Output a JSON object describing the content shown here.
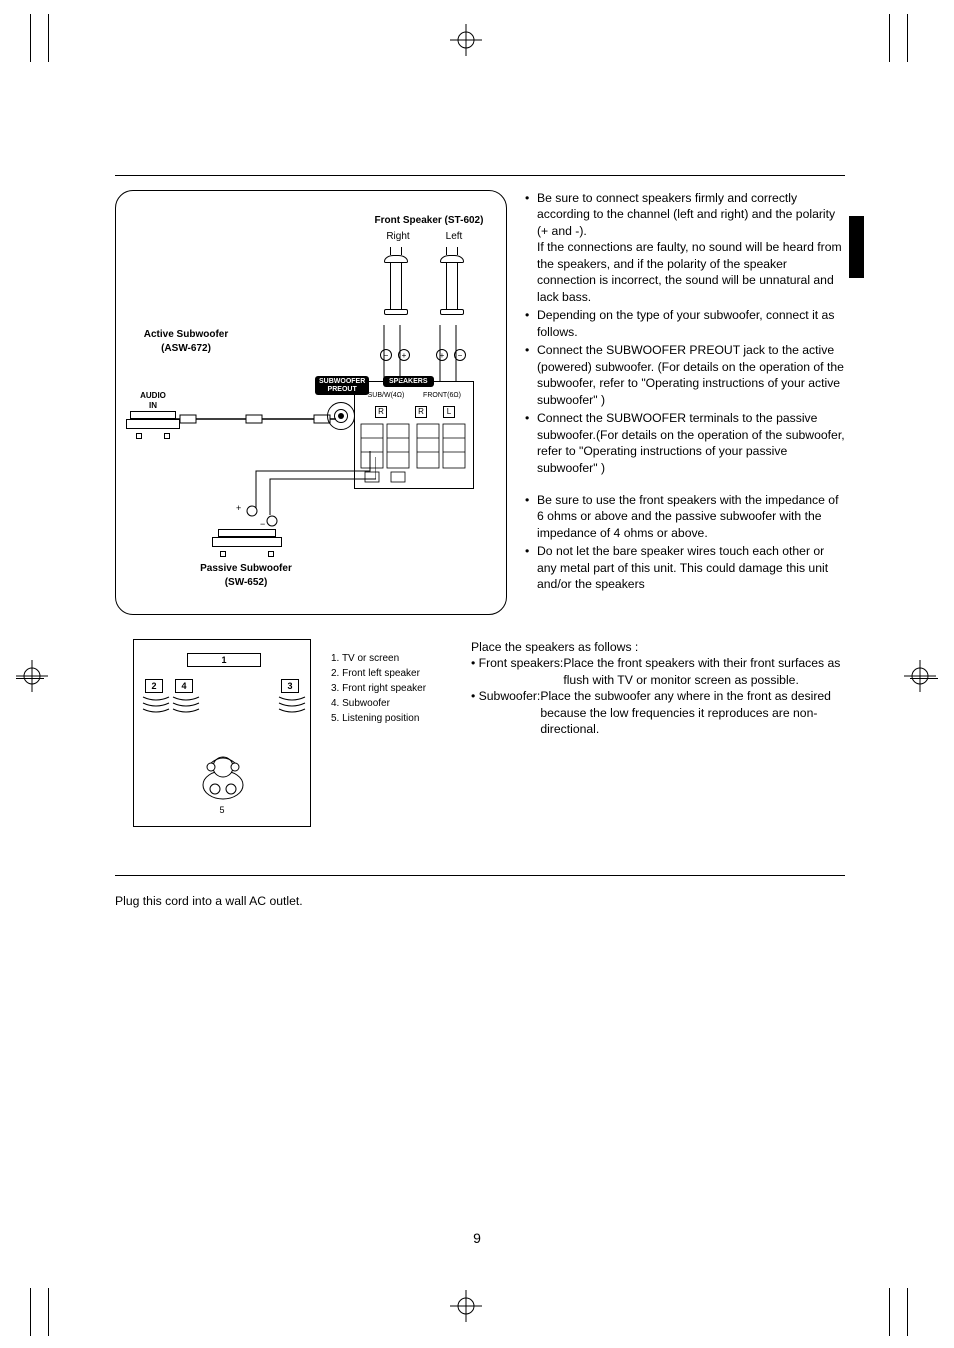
{
  "diagram": {
    "front_speaker_title": "Front Speaker (ST-602)",
    "right": "Right",
    "left": "Left",
    "active_sub_title": "Active Subwoofer",
    "active_sub_model": "(ASW-672)",
    "passive_sub_title": "Passive Subwoofer",
    "passive_sub_model": "(SW-652)",
    "audio_in": "AUDIO",
    "audio_in2": "IN",
    "sub_preout": "SUBWOOFER",
    "sub_preout2": "PREOUT",
    "speakers_lbl": "SPEAKERS",
    "subw_imp": "SUB/W(4Ω)",
    "front_imp": "FRONT(6Ω)",
    "r": "R",
    "l": "L",
    "minus": "−",
    "plus": "+"
  },
  "bullets_a": [
    "Be sure to connect speakers firmly and correctly according to the channel (left and right) and the polarity (+ and -).\nIf the connections are faulty, no sound will be heard from the speakers, and if the polarity of the speaker connection is incorrect, the sound will be unnatural and lack bass.",
    "Depending on the type of your subwoofer, connect it as follows.",
    "Connect the SUBWOOFER PREOUT jack to the active (powered) subwoofer. (For details on the operation of the subwoofer, refer to \"Operating instructions of your active subwoofer\" )",
    "Connect the SUBWOOFER terminals to the passive subwoofer.(For details on the operation of the subwoofer, refer to \"Operating instructions of your passive subwoofer\" )"
  ],
  "bullets_b": [
    "Be sure to use the front speakers with the impedance of 6 ohms or above and the passive subwoofer with the impedance of 4 ohms or above.",
    "Do not let the bare speaker wires touch each other or any metal part of this unit. This could damage this unit and/or the speakers"
  ],
  "legend": {
    "i1": "1. TV or screen",
    "i2": "2. Front left speaker",
    "i3": "3. Front right speaker",
    "i4": "4. Subwoofer",
    "i5": "5. Listening position"
  },
  "numbers": {
    "n1": "1",
    "n2": "2",
    "n3": "3",
    "n4": "4",
    "n5": "5"
  },
  "placement": {
    "intro": "Place the speakers as follows :",
    "front_lead": "• Front speakers: ",
    "front_body": "Place the front speakers with their front surfaces as flush with TV or monitor screen as possible.",
    "sub_lead": "• Subwoofer: ",
    "sub_body": "Place the subwoofer any where in the front as desired because the low frequencies it reproduces are non-directional."
  },
  "cord": "Plug this cord into a wall AC outlet.",
  "pagenum": "9"
}
